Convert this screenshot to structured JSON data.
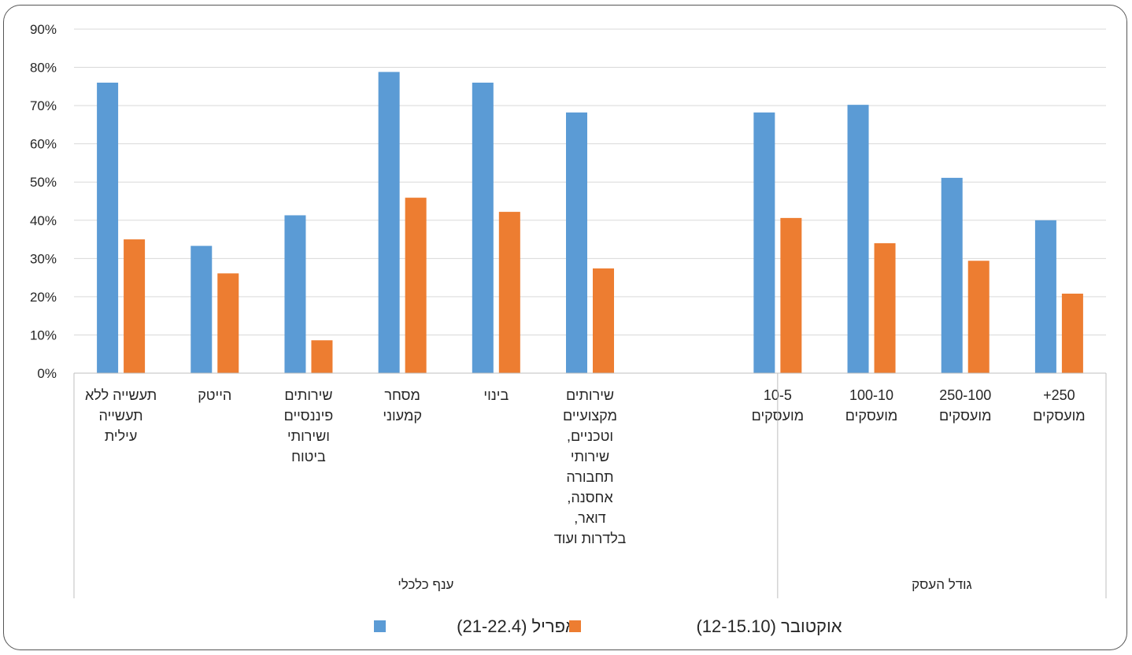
{
  "chart_data": {
    "type": "bar",
    "title": "",
    "xlabel": "",
    "ylabel": "",
    "ylim": [
      0,
      90
    ],
    "y_ticks": [
      "0%",
      "10%",
      "20%",
      "30%",
      "40%",
      "50%",
      "60%",
      "70%",
      "80%",
      "90%"
    ],
    "grid": true,
    "legend_position": "bottom",
    "categories": [
      [
        "תעשייה ללא",
        "תעשייה",
        "עילית"
      ],
      [
        "הייטק"
      ],
      [
        "שירותים",
        "פיננסיים",
        "ושירותי",
        "ביטוח"
      ],
      [
        "מסחר",
        "קמעוני"
      ],
      [
        "בינוי"
      ],
      [
        "שירותים",
        "מקצועיים",
        "וטכניים,",
        "שירותי",
        "תחבורה",
        "אחסנה,",
        "דואר,",
        "בלדרות ועוד"
      ],
      [],
      [
        "10-5",
        "מועסקים"
      ],
      [
        "100-10",
        "מועסקים"
      ],
      [
        "250-100",
        "מועסקים"
      ],
      [
        "250+",
        "מועסקים"
      ]
    ],
    "groups": [
      {
        "label": "ענף כלכלי",
        "from": 0,
        "to": 6
      },
      {
        "label": "גודל העסק",
        "from": 7,
        "to": 10
      }
    ],
    "series": [
      {
        "name": "אפריל (21-22.4)",
        "color": "#5b9bd5",
        "values": [
          76,
          33.3,
          41.3,
          78.8,
          76,
          68.2,
          null,
          68.2,
          70.2,
          51.1,
          40
        ]
      },
      {
        "name": "אוקטובר (12-15.10)",
        "color": "#ed7d31",
        "values": [
          35,
          26.1,
          8.6,
          45.9,
          42.2,
          27.4,
          null,
          40.6,
          34,
          29.4,
          20.8
        ]
      }
    ]
  }
}
